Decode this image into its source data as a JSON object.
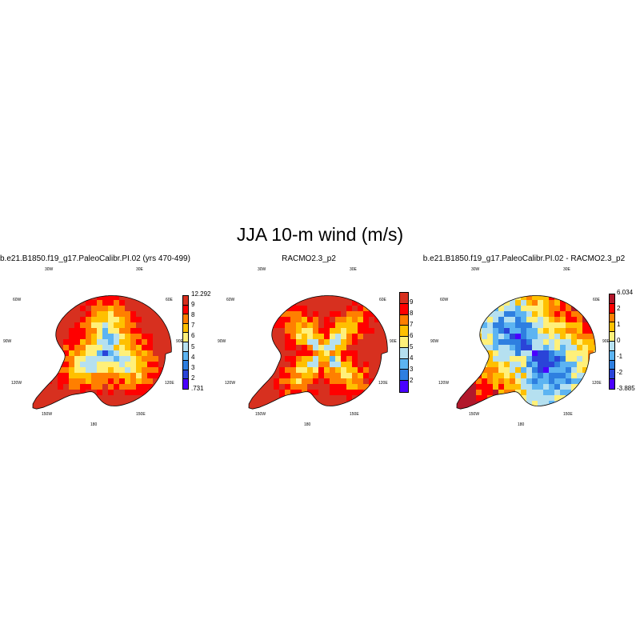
{
  "title": "JJA 10-m wind (m/s)",
  "panels": [
    {
      "title": "b.e21.B1850.f19_g17.PaleoCalibr.PI.02 (yrs 470-499)",
      "field": "model",
      "colorbar": {
        "labels": [
          "12.292",
          "9",
          "8",
          "7",
          "6",
          "5",
          "4",
          "3",
          "2",
          ".731"
        ],
        "colors": [
          "#d7301f",
          "#ff0000",
          "#ff7f00",
          "#ffc000",
          "#fff07a",
          "#b5e0f0",
          "#5cb4f2",
          "#2e7fe0",
          "#2a44d8",
          "#4a00ff"
        ]
      }
    },
    {
      "title": "RACMO2.3_p2",
      "field": "racmo",
      "colorbar": {
        "labels": [
          "9",
          "8",
          "7",
          "6",
          "5",
          "4",
          "3",
          "2"
        ],
        "colors": [
          "#d7301f",
          "#ff0000",
          "#ff7f00",
          "#ffc000",
          "#fff07a",
          "#b5e0f0",
          "#5cb4f2",
          "#2e7fe0",
          "#4a00ff"
        ]
      }
    },
    {
      "title": "b.e21.B1850.f19_g17.PaleoCalibr.PI.02 - RACMO2.3_p2",
      "field": "diff",
      "colorbar": {
        "labels": [
          "6.034",
          "2",
          "1",
          "0",
          "-1",
          "-2",
          "-3.885"
        ],
        "colors": [
          "#b2182b",
          "#ff0000",
          "#ff7f00",
          "#ffc000",
          "#fff07a",
          "#b5e0f0",
          "#5cb4f2",
          "#2e7fe0",
          "#2a44d8",
          "#4a00ff"
        ]
      }
    }
  ],
  "longitude_labels": {
    "n30w": "30W",
    "n30e": "30E",
    "n60w": "60W",
    "n60e": "60E",
    "w90": "90W",
    "e90": "90E",
    "s120w": "120W",
    "s120e": "120E",
    "s150w": "150W",
    "s150e": "150E",
    "s180": "180"
  }
}
